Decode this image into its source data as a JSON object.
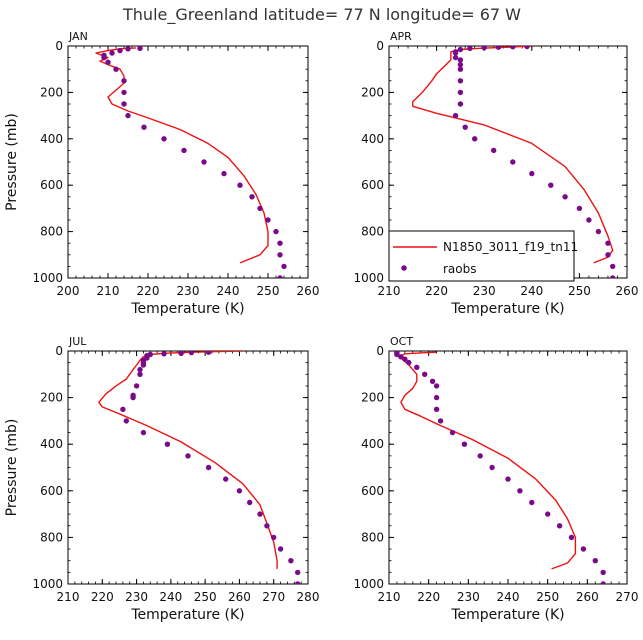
{
  "figure_title": "Thule_Greenland   latitude= 77 N longitude= 67 W",
  "colors": {
    "model": "#ee1111",
    "obs": "#7a0a8a",
    "axis": "#000000"
  },
  "legend": {
    "model_label": "N1850_3011_f19_tn11",
    "obs_label": "raobs",
    "placement": "bottom-left of APR panel"
  },
  "chart_data": [
    {
      "type": "line",
      "panel": "JAN",
      "xlabel": "Temperature (K)",
      "ylabel": "Pressure (mb)",
      "xlim": [
        200,
        260
      ],
      "ylim": [
        1000,
        0
      ],
      "xticks": [
        "200",
        "210",
        "220",
        "230",
        "240",
        "250",
        "260"
      ],
      "yticks": [
        "0",
        "200",
        "400",
        "600",
        "800",
        "1000"
      ],
      "series": [
        {
          "name": "N1850_3011_f19_tn11",
          "style": "line",
          "points": [
            [
              217,
              8
            ],
            [
              213,
              12
            ],
            [
              210,
              20
            ],
            [
              207,
              30
            ],
            [
              210,
              50
            ],
            [
              208,
              65
            ],
            [
              210,
              80
            ],
            [
              213,
              100
            ],
            [
              214,
              130
            ],
            [
              214,
              160
            ],
            [
              212,
              190
            ],
            [
              210,
              220
            ],
            [
              211,
              250
            ],
            [
              215,
              280
            ],
            [
              220,
              310
            ],
            [
              228,
              360
            ],
            [
              235,
              420
            ],
            [
              240,
              480
            ],
            [
              244,
              560
            ],
            [
              247,
              640
            ],
            [
              249,
              720
            ],
            [
              250,
              800
            ],
            [
              250,
              860
            ],
            [
              248,
              900
            ],
            [
              243,
              935
            ]
          ]
        },
        {
          "name": "raobs",
          "style": "scatter",
          "points": [
            [
              218,
              10
            ],
            [
              215,
              12
            ],
            [
              213,
              20
            ],
            [
              211,
              30
            ],
            [
              209,
              40
            ],
            [
              209,
              50
            ],
            [
              210,
              70
            ],
            [
              212,
              100
            ],
            [
              214,
              150
            ],
            [
              214,
              200
            ],
            [
              214,
              250
            ],
            [
              215,
              300
            ],
            [
              219,
              350
            ],
            [
              224,
              400
            ],
            [
              229,
              450
            ],
            [
              234,
              500
            ],
            [
              239,
              550
            ],
            [
              243,
              600
            ],
            [
              246,
              650
            ],
            [
              248,
              700
            ],
            [
              250,
              750
            ],
            [
              252,
              800
            ],
            [
              253,
              850
            ],
            [
              253,
              900
            ],
            [
              254,
              950
            ],
            [
              253,
              1000
            ]
          ]
        }
      ]
    },
    {
      "type": "line",
      "panel": "APR",
      "xlabel": "Temperature (K)",
      "ylabel": "",
      "xlim": [
        210,
        260
      ],
      "ylim": [
        1000,
        0
      ],
      "xticks": [
        "210",
        "220",
        "230",
        "240",
        "250",
        "260"
      ],
      "yticks": [
        "0",
        "200",
        "400",
        "600",
        "800",
        "1000"
      ],
      "series": [
        {
          "name": "N1850_3011_f19_tn11",
          "style": "line",
          "points": [
            [
              240,
              0
            ],
            [
              235,
              5
            ],
            [
              229,
              10
            ],
            [
              225,
              15
            ],
            [
              223,
              25
            ],
            [
              223,
              40
            ],
            [
              223,
              60
            ],
            [
              222,
              80
            ],
            [
              220,
              120
            ],
            [
              219,
              150
            ],
            [
              217,
              200
            ],
            [
              215,
              240
            ],
            [
              215,
              260
            ],
            [
              220,
              290
            ],
            [
              230,
              340
            ],
            [
              240,
              420
            ],
            [
              247,
              520
            ],
            [
              251,
              620
            ],
            [
              254,
              720
            ],
            [
              256,
              820
            ],
            [
              257,
              880
            ],
            [
              256,
              910
            ],
            [
              253,
              935
            ]
          ]
        },
        {
          "name": "raobs",
          "style": "scatter",
          "points": [
            [
              239,
              2
            ],
            [
              236,
              3
            ],
            [
              233,
              5
            ],
            [
              230,
              7
            ],
            [
              227,
              10
            ],
            [
              225,
              15
            ],
            [
              224,
              25
            ],
            [
              224,
              30
            ],
            [
              224,
              50
            ],
            [
              225,
              60
            ],
            [
              225,
              80
            ],
            [
              225,
              100
            ],
            [
              225,
              150
            ],
            [
              225,
              200
            ],
            [
              225,
              250
            ],
            [
              224,
              300
            ],
            [
              226,
              350
            ],
            [
              228,
              400
            ],
            [
              232,
              450
            ],
            [
              236,
              500
            ],
            [
              240,
              550
            ],
            [
              244,
              600
            ],
            [
              247,
              650
            ],
            [
              250,
              700
            ],
            [
              252,
              750
            ],
            [
              254,
              800
            ],
            [
              256,
              850
            ],
            [
              256,
              900
            ],
            [
              257,
              950
            ],
            [
              257,
              1000
            ]
          ]
        }
      ]
    },
    {
      "type": "line",
      "panel": "JUL",
      "xlabel": "Temperature (K)",
      "ylabel": "Pressure (mb)",
      "xlim": [
        210,
        280
      ],
      "ylim": [
        1000,
        0
      ],
      "xticks": [
        "210",
        "220",
        "230",
        "240",
        "250",
        "260",
        "270",
        "280"
      ],
      "yticks": [
        "0",
        "200",
        "400",
        "600",
        "800",
        "1000"
      ],
      "series": [
        {
          "name": "N1850_3011_f19_tn11",
          "style": "line",
          "points": [
            [
              261,
              0
            ],
            [
              252,
              3
            ],
            [
              244,
              6
            ],
            [
              238,
              10
            ],
            [
              234,
              15
            ],
            [
              232,
              25
            ],
            [
              231,
              40
            ],
            [
              230,
              60
            ],
            [
              229,
              80
            ],
            [
              228,
              100
            ],
            [
              227,
              120
            ],
            [
              224,
              150
            ],
            [
              221,
              185
            ],
            [
              219,
              220
            ],
            [
              220,
              240
            ],
            [
              225,
              270
            ],
            [
              233,
              320
            ],
            [
              243,
              390
            ],
            [
              253,
              480
            ],
            [
              261,
              570
            ],
            [
              266,
              660
            ],
            [
              268,
              740
            ],
            [
              270,
              820
            ],
            [
              271,
              900
            ],
            [
              271,
              935
            ]
          ]
        },
        {
          "name": "raobs",
          "style": "scatter",
          "points": [
            [
              251,
              5
            ],
            [
              246,
              7
            ],
            [
              243,
              10
            ],
            [
              238,
              12
            ],
            [
              234,
              15
            ],
            [
              233,
              20
            ],
            [
              233,
              30
            ],
            [
              232,
              40
            ],
            [
              232,
              50
            ],
            [
              232,
              60
            ],
            [
              231,
              80
            ],
            [
              231,
              100
            ],
            [
              230,
              150
            ],
            [
              229,
              190
            ],
            [
              229,
              200
            ],
            [
              226,
              250
            ],
            [
              227,
              300
            ],
            [
              232,
              350
            ],
            [
              239,
              400
            ],
            [
              245,
              450
            ],
            [
              251,
              500
            ],
            [
              256,
              550
            ],
            [
              260,
              600
            ],
            [
              263,
              650
            ],
            [
              266,
              700
            ],
            [
              268,
              750
            ],
            [
              270,
              800
            ],
            [
              272,
              850
            ],
            [
              275,
              900
            ],
            [
              277,
              950
            ],
            [
              277,
              1000
            ]
          ]
        }
      ]
    },
    {
      "type": "line",
      "panel": "OCT",
      "xlabel": "Temperature (K)",
      "ylabel": "",
      "xlim": [
        210,
        270
      ],
      "ylim": [
        1000,
        0
      ],
      "xticks": [
        "210",
        "220",
        "230",
        "240",
        "250",
        "260",
        "270"
      ],
      "yticks": [
        "0",
        "200",
        "400",
        "600",
        "800",
        "1000"
      ],
      "series": [
        {
          "name": "N1850_3011_f19_tn11",
          "style": "line",
          "points": [
            [
              222,
              5
            ],
            [
              218,
              8
            ],
            [
              214,
              12
            ],
            [
              213,
              20
            ],
            [
              213,
              30
            ],
            [
              214,
              45
            ],
            [
              215,
              60
            ],
            [
              216,
              80
            ],
            [
              217,
              100
            ],
            [
              217,
              130
            ],
            [
              216,
              160
            ],
            [
              214,
              190
            ],
            [
              213,
              220
            ],
            [
              214,
              250
            ],
            [
              218,
              280
            ],
            [
              223,
              320
            ],
            [
              231,
              380
            ],
            [
              240,
              460
            ],
            [
              247,
              550
            ],
            [
              252,
              640
            ],
            [
              255,
              720
            ],
            [
              257,
              800
            ],
            [
              257,
              870
            ],
            [
              255,
              910
            ],
            [
              251,
              935
            ]
          ]
        },
        {
          "name": "raobs",
          "style": "scatter",
          "points": [
            [
              212,
              5
            ],
            [
              212,
              10
            ],
            [
              212,
              15
            ],
            [
              213,
              25
            ],
            [
              214,
              35
            ],
            [
              215,
              50
            ],
            [
              217,
              70
            ],
            [
              219,
              100
            ],
            [
              221,
              130
            ],
            [
              222,
              150
            ],
            [
              222,
              200
            ],
            [
              222,
              250
            ],
            [
              223,
              300
            ],
            [
              226,
              350
            ],
            [
              229,
              400
            ],
            [
              233,
              450
            ],
            [
              236,
              500
            ],
            [
              240,
              550
            ],
            [
              243,
              600
            ],
            [
              246,
              650
            ],
            [
              250,
              700
            ],
            [
              253,
              750
            ],
            [
              256,
              800
            ],
            [
              259,
              850
            ],
            [
              262,
              900
            ],
            [
              264,
              950
            ],
            [
              264,
              1000
            ]
          ]
        }
      ]
    }
  ]
}
